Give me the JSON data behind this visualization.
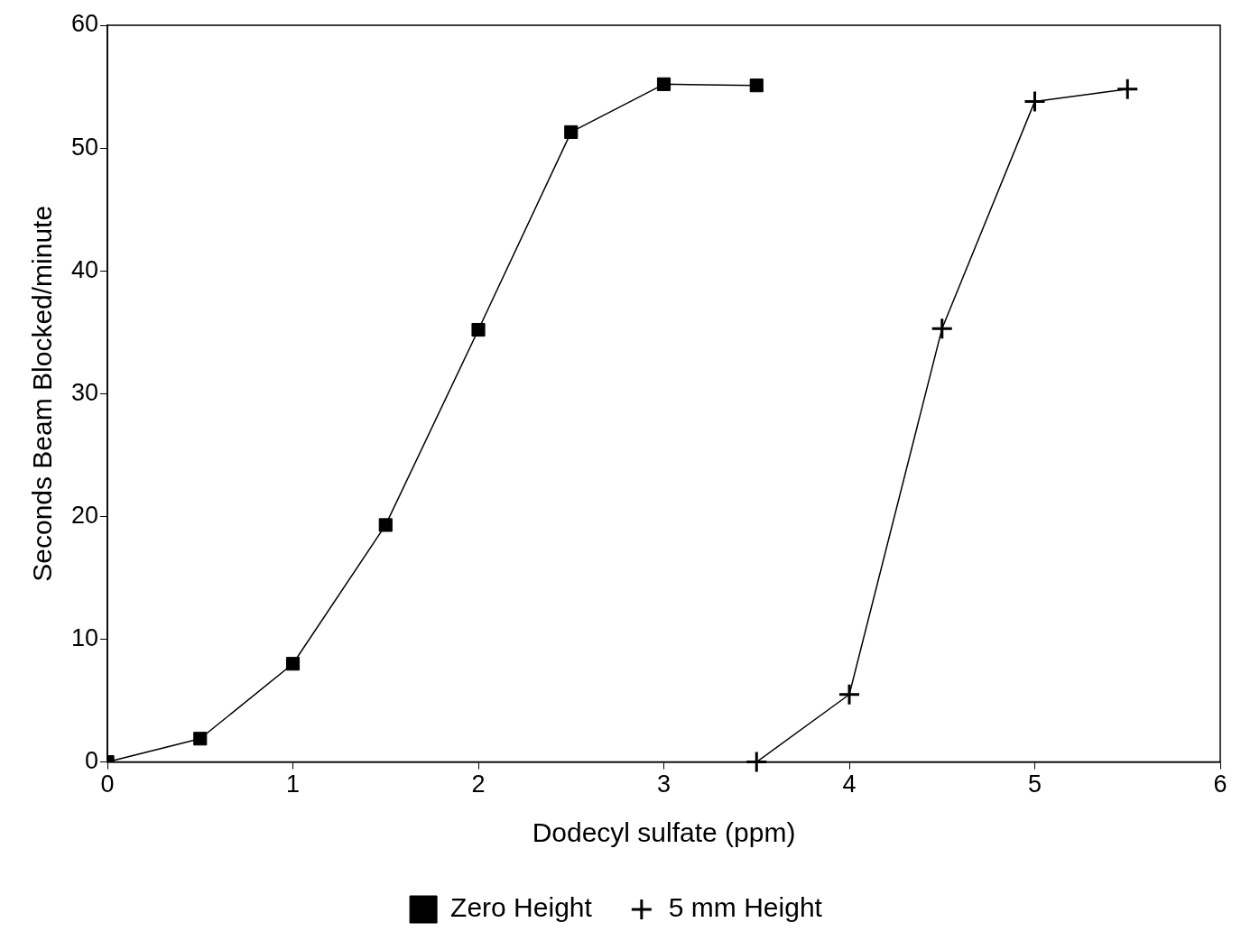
{
  "chart_data": {
    "type": "line",
    "xlabel": "Dodecyl sulfate (ppm)",
    "ylabel": "Seconds Beam Blocked/minute",
    "xlim": [
      0,
      6
    ],
    "xticks": [
      0,
      1,
      2,
      3,
      4,
      5,
      6
    ],
    "ylim": [
      0,
      60
    ],
    "yticks": [
      0,
      10,
      20,
      30,
      40,
      50,
      60
    ],
    "grid": false,
    "legend": "bottom",
    "line_style": "solid",
    "series": [
      {
        "name": "Zero Height",
        "color": "#000000",
        "marker": "square",
        "x": [
          0,
          0.5,
          1,
          1.5,
          2,
          2.5,
          3,
          3.5
        ],
        "values": [
          0,
          1.9,
          8,
          19.3,
          35.2,
          51.3,
          55.2,
          55.1
        ]
      },
      {
        "name": "5 mm Height",
        "color": "#000000",
        "marker": "cross",
        "x": [
          3.5,
          4,
          4.5,
          5,
          5.5
        ],
        "values": [
          0,
          5.5,
          35.3,
          53.8,
          54.8
        ]
      }
    ]
  }
}
